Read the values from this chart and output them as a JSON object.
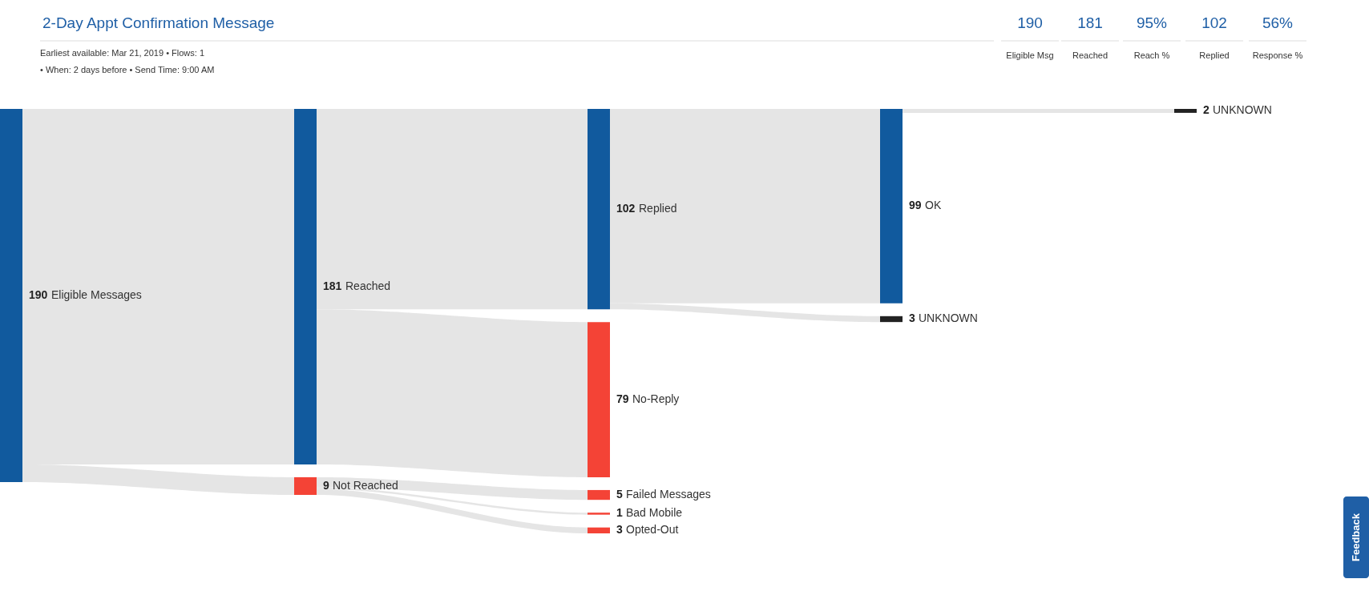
{
  "chart_data": {
    "type": "other",
    "title": "2-Day Appt Confirmation Message",
    "subtitle": [
      "Earliest available: Mar 21, 2019 • Flows: 1",
      "• When: 2 days before  • Send Time: 9:00 AM"
    ],
    "categories": [
      "Eligible Messages",
      "Reached",
      "Not Reached",
      "Replied",
      "No-Reply",
      "Failed Messages",
      "Bad Mobile",
      "Opted-Out",
      "OK",
      "UNKNOWN",
      "UNKNOWN"
    ],
    "series": [
      {
        "values": [
          190,
          null,
          null,
          null,
          null,
          null,
          null,
          null,
          null,
          null,
          null
        ]
      },
      {
        "values": [
          null,
          181,
          9,
          null,
          null,
          null,
          null,
          null,
          null,
          null,
          null
        ]
      },
      {
        "values": [
          null,
          null,
          null,
          102,
          79,
          5,
          1,
          3,
          null,
          null,
          null
        ]
      },
      {
        "values": [
          null,
          null,
          null,
          null,
          null,
          null,
          null,
          null,
          99,
          3,
          null
        ]
      },
      {
        "values": [
          null,
          null,
          null,
          null,
          null,
          null,
          null,
          null,
          null,
          null,
          2
        ]
      }
    ],
    "colors": [
      "#115a9e",
      "#115a9e",
      "#f44336",
      "#115a9e",
      "#f44336",
      "#f44336",
      "#f44336",
      "#f44336",
      "#115a9e",
      "#222222",
      "#222222"
    ],
    "data_labels": true,
    "annotations": [
      "190",
      "Eligible Msg",
      "181",
      "Reached",
      "95%",
      "Reach %",
      "102",
      "Replied",
      "56%",
      "Response %",
      "Feedback"
    ]
  }
}
